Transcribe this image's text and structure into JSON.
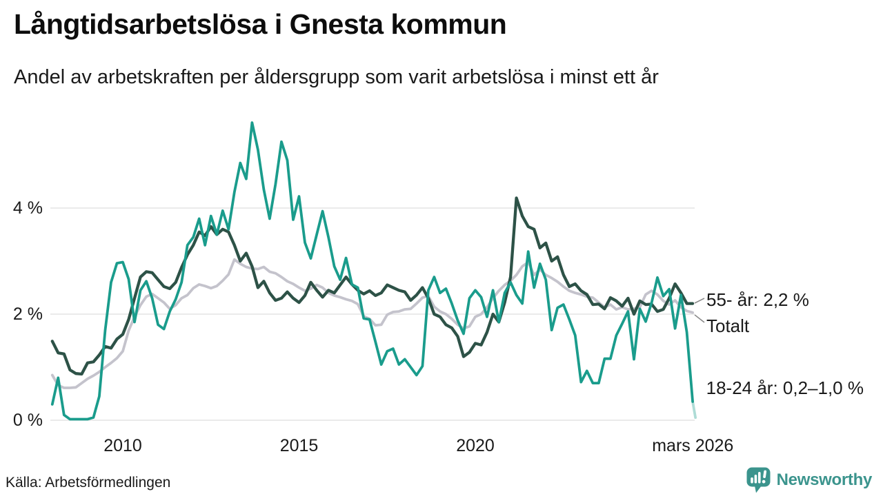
{
  "header": {
    "title": "Långtidsarbetslösa i Gnesta kommun",
    "subtitle": "Andel av arbetskraften per åldersgrupp som varit arbetslösa i minst ett år"
  },
  "chart_data": {
    "type": "line",
    "title": "Långtidsarbetslösa i Gnesta kommun",
    "subtitle": "Andel av arbetskraften per åldersgrupp som varit arbetslösa i minst ett år",
    "unit": "% av arbetskraften",
    "x_start": 2008,
    "x_step_years": 0.166667,
    "xlim": [
      2008,
      2026.25
    ],
    "ylim": [
      0,
      5.8
    ],
    "grid": "horizontal",
    "legend_position": "end-of-line-labels",
    "x_axis": {
      "ticks": [
        {
          "year": 2010,
          "label": "2010"
        },
        {
          "year": 2015,
          "label": "2015"
        },
        {
          "year": 2020,
          "label": "2020"
        },
        {
          "year": 2026.17,
          "label": "mars 2026"
        }
      ]
    },
    "y_axis": {
      "ticks": [
        {
          "value": 0,
          "label": "0 %"
        },
        {
          "value": 2,
          "label": "2 %"
        },
        {
          "value": 4,
          "label": "4 %"
        }
      ]
    },
    "series": [
      {
        "name": "18-24 år",
        "color": "#1a9c8c",
        "values": [
          0.3,
          0.8,
          0.1,
          0.02,
          0.02,
          0.02,
          0.02,
          0.05,
          0.45,
          1.7,
          2.6,
          2.96,
          2.98,
          2.66,
          1.85,
          2.45,
          2.62,
          2.3,
          1.8,
          1.72,
          2.05,
          2.28,
          2.6,
          3.3,
          3.45,
          3.8,
          3.3,
          3.85,
          3.5,
          3.95,
          3.6,
          4.3,
          4.85,
          4.55,
          5.61,
          5.1,
          4.35,
          3.8,
          4.45,
          5.25,
          4.9,
          3.78,
          4.22,
          3.35,
          3.05,
          3.5,
          3.94,
          3.45,
          2.9,
          2.65,
          3.06,
          2.56,
          2.5,
          1.92,
          1.9,
          1.48,
          1.05,
          1.3,
          1.35,
          1.05,
          1.15,
          1.0,
          0.85,
          1.02,
          2.45,
          2.7,
          2.4,
          2.48,
          2.2,
          1.88,
          1.63,
          2.3,
          2.45,
          2.32,
          1.95,
          2.45,
          1.85,
          2.4,
          2.6,
          2.36,
          2.2,
          3.18,
          2.5,
          2.95,
          2.65,
          1.7,
          2.12,
          2.18,
          1.9,
          1.6,
          0.72,
          0.93,
          0.7,
          0.7,
          1.16,
          1.16,
          1.6,
          1.82,
          2.05,
          1.15,
          2.1,
          1.86,
          2.21,
          2.69,
          2.34,
          2.47,
          1.73,
          2.36,
          1.66,
          0.35
        ]
      },
      {
        "name": "55- år",
        "color": "#2d5247",
        "values": [
          1.49,
          1.27,
          1.25,
          0.95,
          0.88,
          0.87,
          1.08,
          1.1,
          1.23,
          1.39,
          1.36,
          1.53,
          1.62,
          1.9,
          2.3,
          2.7,
          2.8,
          2.78,
          2.65,
          2.52,
          2.48,
          2.6,
          2.88,
          3.12,
          3.3,
          3.55,
          3.48,
          3.65,
          3.5,
          3.6,
          3.55,
          3.3,
          3.0,
          3.15,
          2.9,
          2.5,
          2.62,
          2.4,
          2.26,
          2.3,
          2.42,
          2.3,
          2.22,
          2.35,
          2.6,
          2.45,
          2.32,
          2.45,
          2.4,
          2.55,
          2.7,
          2.56,
          2.45,
          2.38,
          2.44,
          2.35,
          2.4,
          2.55,
          2.5,
          2.45,
          2.42,
          2.26,
          2.36,
          2.5,
          2.3,
          2.0,
          1.95,
          1.8,
          1.74,
          1.58,
          1.2,
          1.28,
          1.45,
          1.42,
          1.66,
          2.0,
          1.85,
          2.22,
          2.7,
          4.19,
          3.85,
          3.65,
          3.6,
          3.25,
          3.34,
          3.0,
          3.08,
          2.74,
          2.52,
          2.57,
          2.44,
          2.37,
          2.18,
          2.19,
          2.1,
          2.31,
          2.25,
          2.15,
          2.3,
          2.0,
          2.25,
          2.18,
          2.19,
          2.05,
          2.09,
          2.3,
          2.57,
          2.4,
          2.2,
          2.2
        ]
      },
      {
        "name": "Totalt",
        "color": "#c4c3cc",
        "values": [
          0.85,
          0.66,
          0.61,
          0.61,
          0.62,
          0.7,
          0.78,
          0.84,
          0.91,
          1.0,
          1.08,
          1.17,
          1.3,
          1.69,
          1.95,
          2.17,
          2.33,
          2.38,
          2.3,
          2.22,
          2.1,
          2.17,
          2.3,
          2.36,
          2.49,
          2.56,
          2.53,
          2.49,
          2.53,
          2.63,
          2.75,
          3.03,
          2.95,
          2.89,
          2.86,
          2.85,
          2.89,
          2.8,
          2.77,
          2.7,
          2.62,
          2.57,
          2.5,
          2.44,
          2.48,
          2.55,
          2.5,
          2.4,
          2.35,
          2.32,
          2.28,
          2.25,
          2.19,
          1.96,
          1.91,
          1.79,
          1.8,
          1.99,
          2.04,
          2.05,
          2.09,
          2.1,
          2.2,
          2.31,
          2.34,
          2.14,
          2.05,
          2.0,
          1.91,
          1.8,
          1.73,
          1.77,
          1.95,
          2.0,
          2.13,
          2.3,
          2.44,
          2.55,
          2.63,
          2.74,
          2.9,
          2.98,
          2.74,
          2.84,
          2.74,
          2.68,
          2.61,
          2.52,
          2.44,
          2.4,
          2.37,
          2.33,
          2.31,
          2.22,
          2.13,
          2.18,
          2.09,
          2.13,
          2.09,
          2.1,
          2.13,
          2.37,
          2.44,
          2.37,
          2.25,
          2.18,
          2.26,
          2.13,
          2.06,
          2.03
        ]
      }
    ],
    "annotations": [
      {
        "series": "55- år",
        "text": "55- år: 2,2 %"
      },
      {
        "series": "Totalt",
        "text": "Totalt"
      },
      {
        "series": "18-24 år",
        "text": "18-24 år: 0,2–1,0 %"
      }
    ],
    "latest_values": {
      "55- år": "2,2 %",
      "18-24 år": "0,2–1,0 %"
    },
    "colors": {
      "grid": "#e4e4e4",
      "text": "#1a1a1a",
      "connector": "#8a8a8a"
    }
  },
  "footer": {
    "source": "Källa: Arbetsförmedlingen",
    "brand": "Newsworthy",
    "brand_color": "#3b948d"
  }
}
